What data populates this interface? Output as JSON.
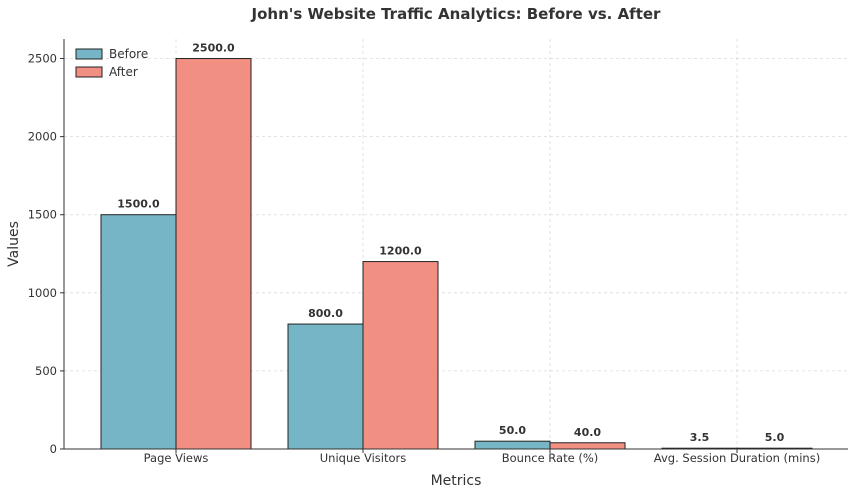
{
  "chart_data": {
    "type": "bar",
    "title": "John's Website Traffic Analytics: Before vs. After",
    "xlabel": "Metrics",
    "ylabel": "Values",
    "categories": [
      "Page Views",
      "Unique Visitors",
      "Bounce Rate (%)",
      "Avg. Session Duration (mins)"
    ],
    "series": [
      {
        "name": "Before",
        "values": [
          1500,
          800,
          50,
          3.5
        ],
        "color": "#76b5c5"
      },
      {
        "name": "After",
        "values": [
          2500,
          1200,
          40,
          5
        ],
        "color": "#f08f82"
      }
    ],
    "ylim": [
      0,
      2625
    ],
    "yticks": [
      0,
      500,
      1000,
      1500,
      2000,
      2500
    ],
    "grid": true,
    "legend_position": "top-left",
    "data_label_format": "one-decimal"
  }
}
